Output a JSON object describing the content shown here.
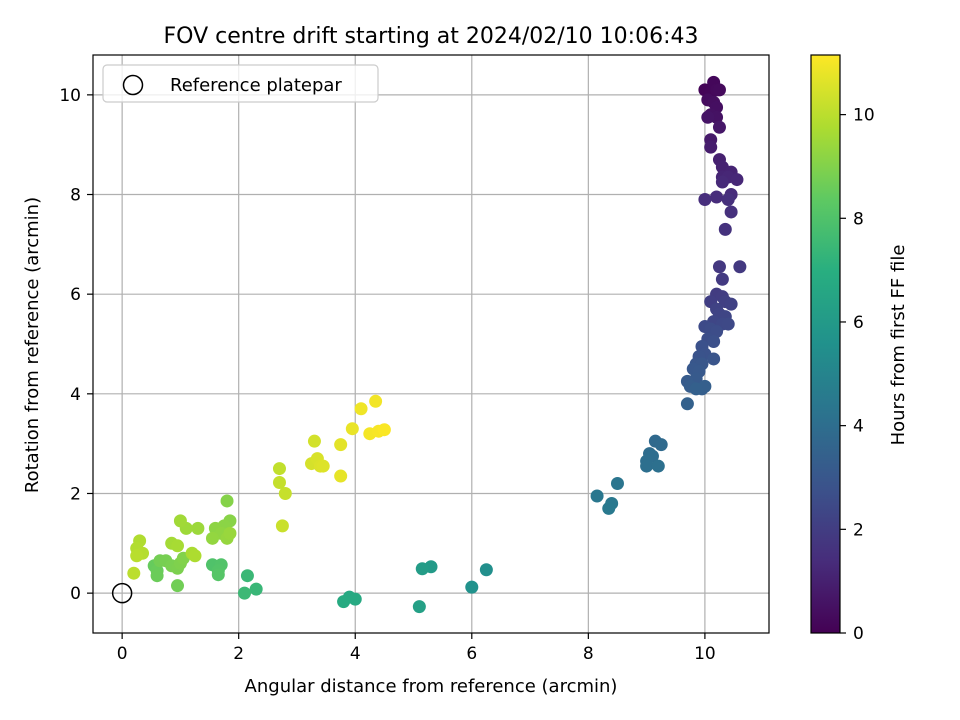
{
  "chart_data": {
    "type": "scatter",
    "title": "FOV centre drift starting at 2024/02/10 10:06:43",
    "xlabel": "Angular distance from reference (arcmin)",
    "ylabel": "Rotation from reference (arcmin)",
    "xlim": [
      -0.5,
      11.1
    ],
    "ylim": [
      -0.8,
      10.8
    ],
    "xticks": [
      0,
      2,
      4,
      6,
      8,
      10
    ],
    "yticks": [
      0,
      2,
      4,
      6,
      8,
      10
    ],
    "grid": true,
    "legend": {
      "placement": "upper-left",
      "entries": [
        "Reference platepar"
      ]
    },
    "reference_point": {
      "x": 0,
      "y": 0,
      "marker": "open-circle"
    },
    "colorbar": {
      "label": "Hours from first FF file",
      "colormap": "viridis",
      "range": [
        0,
        11.15
      ],
      "ticks": [
        0,
        2,
        4,
        6,
        8,
        10
      ]
    },
    "points": [
      {
        "x": 10.0,
        "y": 10.1,
        "c": 0.1
      },
      {
        "x": 10.1,
        "y": 10.05,
        "c": 0.15
      },
      {
        "x": 10.15,
        "y": 10.25,
        "c": 0.2
      },
      {
        "x": 10.2,
        "y": 10.1,
        "c": 0.25
      },
      {
        "x": 10.25,
        "y": 10.1,
        "c": 0.3
      },
      {
        "x": 10.05,
        "y": 9.9,
        "c": 0.35
      },
      {
        "x": 10.15,
        "y": 9.85,
        "c": 0.4
      },
      {
        "x": 10.2,
        "y": 9.75,
        "c": 0.45
      },
      {
        "x": 10.1,
        "y": 9.6,
        "c": 0.5
      },
      {
        "x": 10.2,
        "y": 9.55,
        "c": 0.55
      },
      {
        "x": 10.05,
        "y": 9.55,
        "c": 0.6
      },
      {
        "x": 10.25,
        "y": 9.35,
        "c": 0.7
      },
      {
        "x": 10.1,
        "y": 9.1,
        "c": 0.8
      },
      {
        "x": 10.1,
        "y": 8.95,
        "c": 0.9
      },
      {
        "x": 10.25,
        "y": 8.7,
        "c": 1.0
      },
      {
        "x": 10.3,
        "y": 8.55,
        "c": 1.05
      },
      {
        "x": 10.45,
        "y": 8.45,
        "c": 1.1
      },
      {
        "x": 10.3,
        "y": 8.35,
        "c": 1.15
      },
      {
        "x": 10.4,
        "y": 8.35,
        "c": 1.2
      },
      {
        "x": 10.55,
        "y": 8.3,
        "c": 1.25
      },
      {
        "x": 10.3,
        "y": 8.25,
        "c": 1.3
      },
      {
        "x": 10.45,
        "y": 8.0,
        "c": 1.35
      },
      {
        "x": 10.2,
        "y": 7.95,
        "c": 1.4
      },
      {
        "x": 10.0,
        "y": 7.9,
        "c": 1.45
      },
      {
        "x": 10.4,
        "y": 7.9,
        "c": 1.5
      },
      {
        "x": 10.45,
        "y": 7.65,
        "c": 1.55
      },
      {
        "x": 10.35,
        "y": 7.3,
        "c": 1.6
      },
      {
        "x": 10.25,
        "y": 6.55,
        "c": 1.8
      },
      {
        "x": 10.6,
        "y": 6.55,
        "c": 1.85
      },
      {
        "x": 10.3,
        "y": 6.3,
        "c": 1.9
      },
      {
        "x": 10.2,
        "y": 6.0,
        "c": 1.95
      },
      {
        "x": 10.3,
        "y": 5.95,
        "c": 2.0
      },
      {
        "x": 10.1,
        "y": 5.85,
        "c": 2.05
      },
      {
        "x": 10.35,
        "y": 5.85,
        "c": 2.1
      },
      {
        "x": 10.45,
        "y": 5.8,
        "c": 2.15
      },
      {
        "x": 10.2,
        "y": 5.7,
        "c": 2.2
      },
      {
        "x": 10.25,
        "y": 5.6,
        "c": 2.25
      },
      {
        "x": 10.35,
        "y": 5.55,
        "c": 2.3
      },
      {
        "x": 10.15,
        "y": 5.45,
        "c": 2.35
      },
      {
        "x": 10.3,
        "y": 5.4,
        "c": 2.4
      },
      {
        "x": 10.4,
        "y": 5.4,
        "c": 2.45
      },
      {
        "x": 10.0,
        "y": 5.35,
        "c": 2.5
      },
      {
        "x": 10.1,
        "y": 5.3,
        "c": 2.55
      },
      {
        "x": 10.2,
        "y": 5.25,
        "c": 2.6
      },
      {
        "x": 10.05,
        "y": 5.1,
        "c": 2.65
      },
      {
        "x": 10.15,
        "y": 5.05,
        "c": 2.7
      },
      {
        "x": 9.95,
        "y": 4.95,
        "c": 2.75
      },
      {
        "x": 10.0,
        "y": 4.8,
        "c": 2.8
      },
      {
        "x": 9.9,
        "y": 4.75,
        "c": 2.85
      },
      {
        "x": 10.15,
        "y": 4.7,
        "c": 2.9
      },
      {
        "x": 9.85,
        "y": 4.6,
        "c": 2.95
      },
      {
        "x": 9.95,
        "y": 4.6,
        "c": 3.0
      },
      {
        "x": 9.8,
        "y": 4.5,
        "c": 3.05
      },
      {
        "x": 9.9,
        "y": 4.45,
        "c": 3.1
      },
      {
        "x": 9.85,
        "y": 4.3,
        "c": 3.15
      },
      {
        "x": 9.7,
        "y": 4.25,
        "c": 3.2
      },
      {
        "x": 9.75,
        "y": 4.15,
        "c": 3.25
      },
      {
        "x": 9.95,
        "y": 4.1,
        "c": 3.3
      },
      {
        "x": 10.0,
        "y": 4.15,
        "c": 3.35
      },
      {
        "x": 9.85,
        "y": 4.1,
        "c": 3.4
      },
      {
        "x": 9.7,
        "y": 3.8,
        "c": 3.45
      },
      {
        "x": 9.15,
        "y": 3.05,
        "c": 3.8
      },
      {
        "x": 9.25,
        "y": 2.98,
        "c": 3.85
      },
      {
        "x": 9.05,
        "y": 2.8,
        "c": 3.9
      },
      {
        "x": 9.1,
        "y": 2.75,
        "c": 3.95
      },
      {
        "x": 9.0,
        "y": 2.65,
        "c": 4.0
      },
      {
        "x": 9.0,
        "y": 2.55,
        "c": 4.05
      },
      {
        "x": 9.2,
        "y": 2.55,
        "c": 4.1
      },
      {
        "x": 8.5,
        "y": 2.2,
        "c": 4.3
      },
      {
        "x": 8.15,
        "y": 1.95,
        "c": 4.4
      },
      {
        "x": 8.4,
        "y": 1.8,
        "c": 4.45
      },
      {
        "x": 8.35,
        "y": 1.7,
        "c": 4.5
      },
      {
        "x": 6.25,
        "y": 0.47,
        "c": 5.5
      },
      {
        "x": 6.0,
        "y": 0.12,
        "c": 5.6
      },
      {
        "x": 5.3,
        "y": 0.53,
        "c": 6.0
      },
      {
        "x": 5.15,
        "y": 0.49,
        "c": 6.1
      },
      {
        "x": 5.1,
        "y": -0.27,
        "c": 6.3
      },
      {
        "x": 3.9,
        "y": -0.08,
        "c": 6.7
      },
      {
        "x": 4.0,
        "y": -0.12,
        "c": 6.75
      },
      {
        "x": 3.8,
        "y": -0.17,
        "c": 6.8
      },
      {
        "x": 2.3,
        "y": 0.08,
        "c": 7.4
      },
      {
        "x": 2.15,
        "y": 0.35,
        "c": 7.45
      },
      {
        "x": 2.1,
        "y": 0.0,
        "c": 7.5
      },
      {
        "x": 1.55,
        "y": 0.57,
        "c": 8.0
      },
      {
        "x": 1.7,
        "y": 0.57,
        "c": 8.05
      },
      {
        "x": 1.65,
        "y": 0.45,
        "c": 8.1
      },
      {
        "x": 1.65,
        "y": 0.37,
        "c": 8.15
      },
      {
        "x": 0.55,
        "y": 0.55,
        "c": 8.5
      },
      {
        "x": 0.6,
        "y": 0.45,
        "c": 8.55
      },
      {
        "x": 0.6,
        "y": 0.35,
        "c": 8.6
      },
      {
        "x": 0.95,
        "y": 0.15,
        "c": 8.7
      },
      {
        "x": 0.65,
        "y": 0.65,
        "c": 8.75
      },
      {
        "x": 0.75,
        "y": 0.65,
        "c": 8.8
      },
      {
        "x": 0.85,
        "y": 0.55,
        "c": 8.85
      },
      {
        "x": 0.95,
        "y": 0.5,
        "c": 8.9
      },
      {
        "x": 1.0,
        "y": 0.6,
        "c": 8.95
      },
      {
        "x": 1.05,
        "y": 0.7,
        "c": 9.0
      },
      {
        "x": 1.8,
        "y": 1.85,
        "c": 9.05
      },
      {
        "x": 1.85,
        "y": 1.45,
        "c": 9.1
      },
      {
        "x": 1.75,
        "y": 1.35,
        "c": 9.15
      },
      {
        "x": 1.6,
        "y": 1.3,
        "c": 9.2
      },
      {
        "x": 1.7,
        "y": 1.2,
        "c": 9.25
      },
      {
        "x": 1.55,
        "y": 1.1,
        "c": 9.3
      },
      {
        "x": 1.8,
        "y": 1.1,
        "c": 9.35
      },
      {
        "x": 1.85,
        "y": 1.2,
        "c": 9.4
      },
      {
        "x": 1.3,
        "y": 1.3,
        "c": 9.45
      },
      {
        "x": 1.1,
        "y": 1.3,
        "c": 9.5
      },
      {
        "x": 1.0,
        "y": 1.45,
        "c": 9.55
      },
      {
        "x": 0.85,
        "y": 1.0,
        "c": 9.6
      },
      {
        "x": 0.95,
        "y": 0.95,
        "c": 9.65
      },
      {
        "x": 1.2,
        "y": 0.8,
        "c": 9.7
      },
      {
        "x": 1.25,
        "y": 0.75,
        "c": 9.75
      },
      {
        "x": 0.3,
        "y": 1.05,
        "c": 9.8
      },
      {
        "x": 0.25,
        "y": 0.9,
        "c": 9.85
      },
      {
        "x": 0.35,
        "y": 0.8,
        "c": 9.9
      },
      {
        "x": 0.25,
        "y": 0.75,
        "c": 9.95
      },
      {
        "x": 0.2,
        "y": 0.4,
        "c": 10.0
      },
      {
        "x": 2.7,
        "y": 2.5,
        "c": 10.1
      },
      {
        "x": 2.7,
        "y": 2.22,
        "c": 10.15
      },
      {
        "x": 2.8,
        "y": 2.0,
        "c": 10.2
      },
      {
        "x": 2.75,
        "y": 1.35,
        "c": 10.25
      },
      {
        "x": 3.3,
        "y": 3.05,
        "c": 10.4
      },
      {
        "x": 3.25,
        "y": 2.6,
        "c": 10.45
      },
      {
        "x": 3.35,
        "y": 2.7,
        "c": 10.5
      },
      {
        "x": 3.4,
        "y": 2.55,
        "c": 10.55
      },
      {
        "x": 3.45,
        "y": 2.55,
        "c": 10.6
      },
      {
        "x": 3.75,
        "y": 2.98,
        "c": 10.7
      },
      {
        "x": 3.75,
        "y": 2.35,
        "c": 10.75
      },
      {
        "x": 3.95,
        "y": 3.3,
        "c": 10.8
      },
      {
        "x": 4.1,
        "y": 3.7,
        "c": 10.9
      },
      {
        "x": 4.35,
        "y": 3.85,
        "c": 10.95
      },
      {
        "x": 4.25,
        "y": 3.2,
        "c": 11.0
      },
      {
        "x": 4.4,
        "y": 3.25,
        "c": 11.05
      },
      {
        "x": 4.5,
        "y": 3.28,
        "c": 11.1
      }
    ]
  }
}
